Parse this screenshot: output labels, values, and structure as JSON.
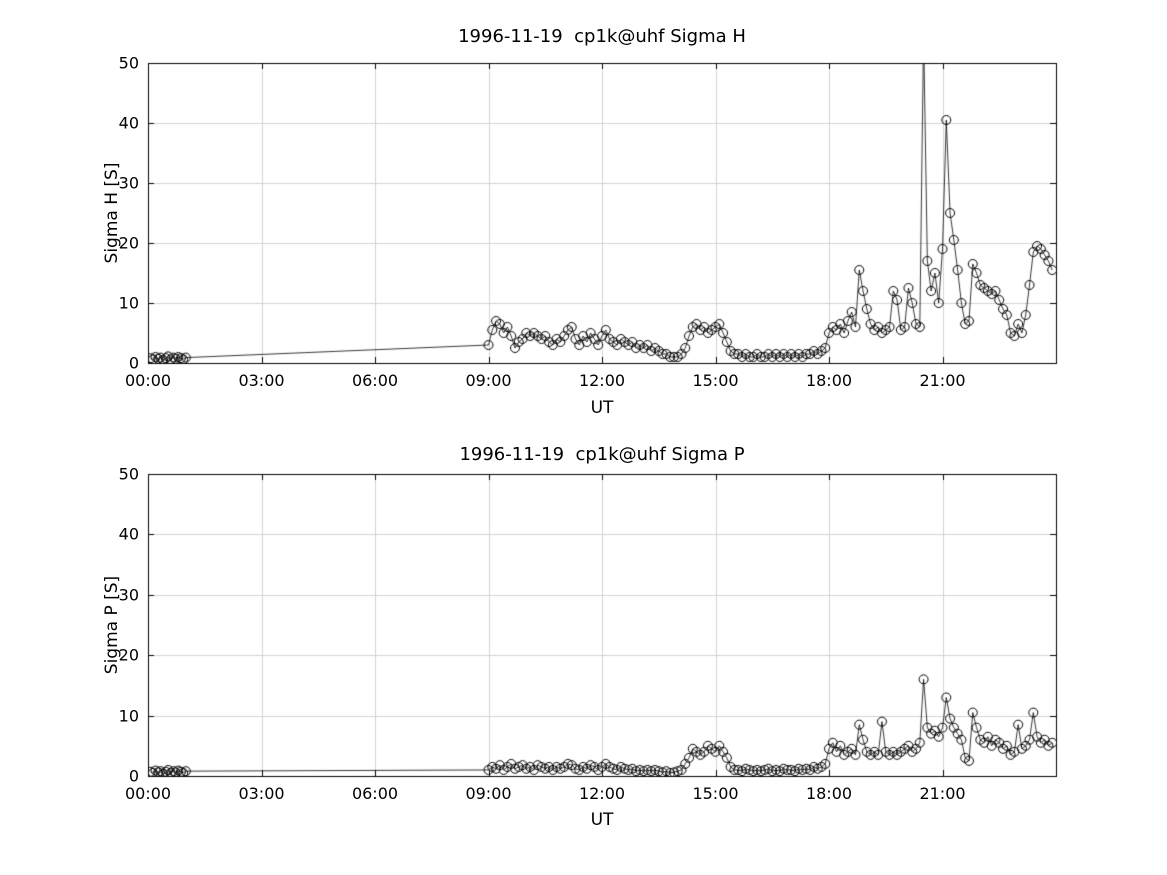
{
  "figure": {
    "background": "#ffffff"
  },
  "chart_data": [
    {
      "type": "scatter",
      "title": "1996-11-19  cp1k@uhf Sigma H",
      "xlabel": "UT",
      "ylabel": "Sigma H [S]",
      "xlim": [
        0,
        24
      ],
      "ylim": [
        0,
        50
      ],
      "xtick_values": [
        0,
        3,
        6,
        9,
        12,
        15,
        18,
        21
      ],
      "xtick_labels": [
        "00:00",
        "03:00",
        "06:00",
        "09:00",
        "12:00",
        "15:00",
        "18:00",
        "21:00"
      ],
      "ytick_values": [
        0,
        10,
        20,
        30,
        40,
        50
      ],
      "ytick_labels": [
        "0",
        "10",
        "20",
        "30",
        "40",
        "50"
      ],
      "grid": true,
      "marker": "open-circle",
      "line_color": "#000000",
      "grid_color": "#d3d3d3",
      "x": [
        0.07,
        0.13,
        0.2,
        0.27,
        0.33,
        0.4,
        0.47,
        0.53,
        0.6,
        0.67,
        0.73,
        0.8,
        0.87,
        0.93,
        1.0,
        9.0,
        9.1,
        9.2,
        9.3,
        9.4,
        9.5,
        9.6,
        9.7,
        9.8,
        9.9,
        10.0,
        10.1,
        10.2,
        10.3,
        10.4,
        10.5,
        10.6,
        10.7,
        10.8,
        10.9,
        11.0,
        11.1,
        11.2,
        11.3,
        11.4,
        11.5,
        11.6,
        11.7,
        11.8,
        11.9,
        12.0,
        12.1,
        12.2,
        12.3,
        12.4,
        12.5,
        12.6,
        12.7,
        12.8,
        12.9,
        13.0,
        13.1,
        13.2,
        13.3,
        13.4,
        13.5,
        13.6,
        13.7,
        13.8,
        13.9,
        14.0,
        14.1,
        14.2,
        14.3,
        14.4,
        14.5,
        14.6,
        14.7,
        14.8,
        14.9,
        15.0,
        15.1,
        15.2,
        15.3,
        15.4,
        15.5,
        15.6,
        15.7,
        15.8,
        15.9,
        16.0,
        16.1,
        16.2,
        16.3,
        16.4,
        16.5,
        16.6,
        16.7,
        16.8,
        16.9,
        17.0,
        17.1,
        17.2,
        17.3,
        17.4,
        17.5,
        17.6,
        17.7,
        17.8,
        17.9,
        18.0,
        18.1,
        18.2,
        18.3,
        18.4,
        18.5,
        18.6,
        18.7,
        18.8,
        18.9,
        19.0,
        19.1,
        19.2,
        19.3,
        19.4,
        19.5,
        19.6,
        19.7,
        19.8,
        19.9,
        20.0,
        20.1,
        20.2,
        20.3,
        20.4,
        20.5,
        20.6,
        20.7,
        20.8,
        20.9,
        21.0,
        21.1,
        21.2,
        21.3,
        21.4,
        21.5,
        21.6,
        21.7,
        21.8,
        21.9,
        22.0,
        22.1,
        22.2,
        22.3,
        22.4,
        22.5,
        22.6,
        22.7,
        22.8,
        22.9,
        23.0,
        23.1,
        23.2,
        23.3,
        23.4,
        23.5,
        23.6,
        23.7,
        23.8,
        23.9
      ],
      "y": [
        0.8,
        0.6,
        1.0,
        0.7,
        0.9,
        0.5,
        0.8,
        1.1,
        0.6,
        0.9,
        0.7,
        1.0,
        0.8,
        0.6,
        0.9,
        3.0,
        5.5,
        7.0,
        6.5,
        5.0,
        6.0,
        4.5,
        2.5,
        3.5,
        4.0,
        5.0,
        4.5,
        5.0,
        4.5,
        4.0,
        4.5,
        3.5,
        3.0,
        4.0,
        3.5,
        4.5,
        5.5,
        6.0,
        4.0,
        3.0,
        4.5,
        3.5,
        5.0,
        4.0,
        3.0,
        4.5,
        5.5,
        4.0,
        3.5,
        3.0,
        4.0,
        3.5,
        3.0,
        3.5,
        2.5,
        3.0,
        2.5,
        3.0,
        2.0,
        2.5,
        2.0,
        1.5,
        1.5,
        1.0,
        1.0,
        1.0,
        1.5,
        2.5,
        4.5,
        6.0,
        6.5,
        5.5,
        6.0,
        5.0,
        5.5,
        6.0,
        6.5,
        5.0,
        3.5,
        2.0,
        1.5,
        1.5,
        1.0,
        1.5,
        1.0,
        1.0,
        1.5,
        1.0,
        1.0,
        1.5,
        1.0,
        1.5,
        1.0,
        1.5,
        1.0,
        1.5,
        1.0,
        1.5,
        1.0,
        1.5,
        1.5,
        2.0,
        1.5,
        2.0,
        2.5,
        5.0,
        6.0,
        5.5,
        6.5,
        5.0,
        7.0,
        8.5,
        6.0,
        15.5,
        12.0,
        9.0,
        6.5,
        5.5,
        6.0,
        5.0,
        5.5,
        6.0,
        12.0,
        10.5,
        5.5,
        6.0,
        12.5,
        10.0,
        6.5,
        6.0,
        55.0,
        17.0,
        12.0,
        15.0,
        10.0,
        19.0,
        40.5,
        25.0,
        20.5,
        15.5,
        10.0,
        6.5,
        7.0,
        16.5,
        15.0,
        13.0,
        12.5,
        12.0,
        11.5,
        12.0,
        10.5,
        9.0,
        8.0,
        5.0,
        4.5,
        6.5,
        5.0,
        8.0,
        13.0,
        18.5,
        19.5,
        19.0,
        18.0,
        17.0,
        15.5
      ]
    },
    {
      "type": "scatter",
      "title": "1996-11-19  cp1k@uhf Sigma P",
      "xlabel": "UT",
      "ylabel": "Sigma P [S]",
      "xlim": [
        0,
        24
      ],
      "ylim": [
        0,
        50
      ],
      "xtick_values": [
        0,
        3,
        6,
        9,
        12,
        15,
        18,
        21
      ],
      "xtick_labels": [
        "00:00",
        "03:00",
        "06:00",
        "09:00",
        "12:00",
        "15:00",
        "18:00",
        "21:00"
      ],
      "ytick_values": [
        0,
        10,
        20,
        30,
        40,
        50
      ],
      "ytick_labels": [
        "0",
        "10",
        "20",
        "30",
        "40",
        "50"
      ],
      "grid": true,
      "marker": "open-circle",
      "line_color": "#000000",
      "grid_color": "#d3d3d3",
      "x": [
        0.07,
        0.13,
        0.2,
        0.27,
        0.33,
        0.4,
        0.47,
        0.53,
        0.6,
        0.67,
        0.73,
        0.8,
        0.87,
        0.93,
        1.0,
        9.0,
        9.1,
        9.2,
        9.3,
        9.4,
        9.5,
        9.6,
        9.7,
        9.8,
        9.9,
        10.0,
        10.1,
        10.2,
        10.3,
        10.4,
        10.5,
        10.6,
        10.7,
        10.8,
        10.9,
        11.0,
        11.1,
        11.2,
        11.3,
        11.4,
        11.5,
        11.6,
        11.7,
        11.8,
        11.9,
        12.0,
        12.1,
        12.2,
        12.3,
        12.4,
        12.5,
        12.6,
        12.7,
        12.8,
        12.9,
        13.0,
        13.1,
        13.2,
        13.3,
        13.4,
        13.5,
        13.6,
        13.7,
        13.8,
        13.9,
        14.0,
        14.1,
        14.2,
        14.3,
        14.4,
        14.5,
        14.6,
        14.7,
        14.8,
        14.9,
        15.0,
        15.1,
        15.2,
        15.3,
        15.4,
        15.5,
        15.6,
        15.7,
        15.8,
        15.9,
        16.0,
        16.1,
        16.2,
        16.3,
        16.4,
        16.5,
        16.6,
        16.7,
        16.8,
        16.9,
        17.0,
        17.1,
        17.2,
        17.3,
        17.4,
        17.5,
        17.6,
        17.7,
        17.8,
        17.9,
        18.0,
        18.1,
        18.2,
        18.3,
        18.4,
        18.5,
        18.6,
        18.7,
        18.8,
        18.9,
        19.0,
        19.1,
        19.2,
        19.3,
        19.4,
        19.5,
        19.6,
        19.7,
        19.8,
        19.9,
        20.0,
        20.1,
        20.2,
        20.3,
        20.4,
        20.5,
        20.6,
        20.7,
        20.8,
        20.9,
        21.0,
        21.1,
        21.2,
        21.3,
        21.4,
        21.5,
        21.6,
        21.7,
        21.8,
        21.9,
        22.0,
        22.1,
        22.2,
        22.3,
        22.4,
        22.5,
        22.6,
        22.7,
        22.8,
        22.9,
        23.0,
        23.1,
        23.2,
        23.3,
        23.4,
        23.5,
        23.6,
        23.7,
        23.8,
        23.9
      ],
      "y": [
        0.7,
        0.5,
        0.9,
        0.6,
        0.8,
        0.4,
        0.7,
        1.0,
        0.5,
        0.8,
        0.6,
        0.9,
        0.7,
        0.5,
        0.8,
        1.0,
        1.5,
        1.2,
        1.8,
        1.0,
        1.5,
        2.0,
        1.2,
        1.5,
        1.8,
        1.2,
        1.5,
        1.0,
        1.8,
        1.5,
        1.2,
        1.5,
        1.0,
        1.5,
        1.2,
        1.5,
        2.0,
        1.8,
        1.2,
        1.0,
        1.5,
        1.2,
        1.8,
        1.5,
        1.0,
        1.5,
        2.0,
        1.5,
        1.2,
        1.0,
        1.5,
        1.2,
        1.0,
        1.2,
        0.8,
        1.0,
        0.8,
        1.0,
        0.8,
        1.0,
        0.8,
        0.6,
        0.8,
        0.5,
        0.6,
        0.8,
        1.0,
        2.0,
        3.0,
        4.5,
        4.0,
        3.5,
        4.0,
        5.0,
        4.5,
        4.0,
        5.0,
        4.0,
        3.0,
        1.5,
        1.0,
        1.0,
        0.8,
        1.2,
        1.0,
        0.8,
        1.0,
        0.8,
        1.0,
        1.2,
        0.8,
        1.0,
        0.8,
        1.2,
        1.0,
        1.0,
        0.8,
        1.2,
        1.0,
        1.2,
        1.0,
        1.5,
        1.2,
        1.5,
        2.0,
        4.5,
        5.5,
        4.0,
        5.0,
        3.5,
        4.0,
        4.5,
        3.5,
        8.5,
        6.0,
        4.0,
        3.5,
        4.0,
        3.5,
        9.0,
        4.0,
        3.5,
        4.0,
        3.5,
        4.0,
        4.5,
        5.0,
        4.0,
        4.5,
        5.5,
        16.0,
        8.0,
        7.0,
        7.5,
        6.5,
        8.0,
        13.0,
        9.5,
        8.0,
        7.0,
        6.0,
        3.0,
        2.5,
        10.5,
        8.0,
        6.0,
        5.5,
        6.5,
        5.0,
        6.0,
        5.5,
        4.5,
        5.0,
        3.5,
        4.0,
        8.5,
        4.5,
        5.0,
        6.0,
        10.5,
        6.5,
        5.5,
        6.0,
        5.0,
        5.5
      ]
    }
  ]
}
